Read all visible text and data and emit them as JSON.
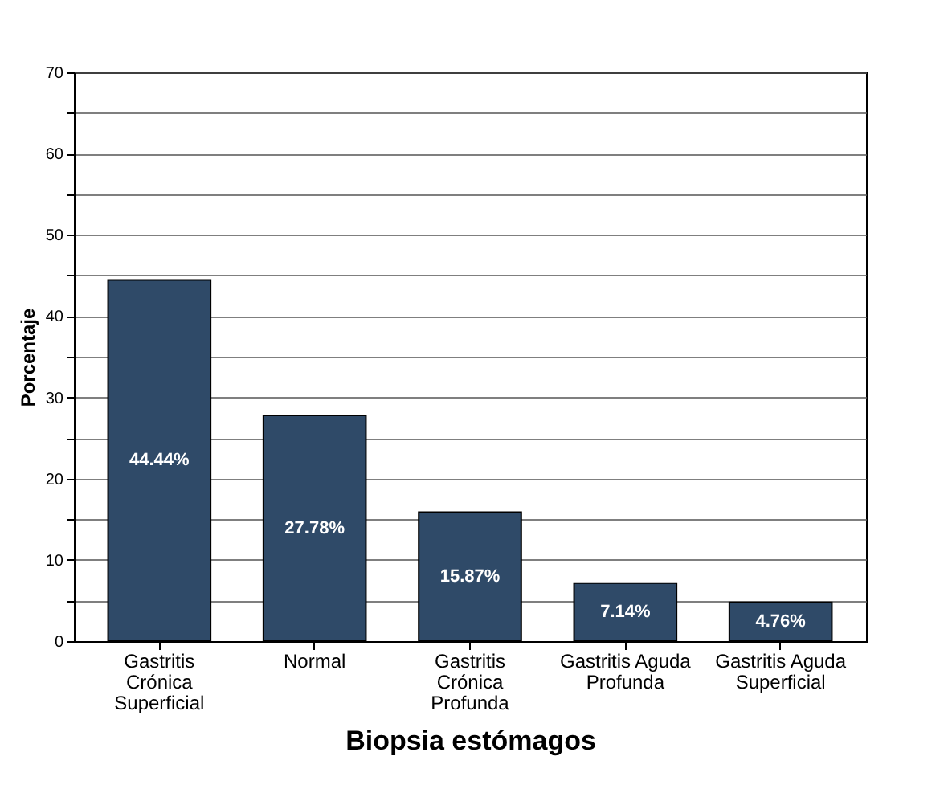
{
  "chart_data": {
    "type": "bar",
    "xlabel": "Biopsia estómagos",
    "ylabel": "Porcentaje",
    "categories": [
      "Gastritis Crónica Superficial",
      "Normal",
      "Gastritis Crónica Profunda",
      "Gastritis Aguda Profunda",
      "Gastritis Aguda Superficial"
    ],
    "values": [
      44.44,
      27.78,
      15.87,
      7.14,
      4.76
    ],
    "value_labels": [
      "44.44%",
      "27.78%",
      "15.87%",
      "7.14%",
      "4.76%"
    ],
    "color": "#2f4a68",
    "ylim": [
      0,
      70
    ],
    "yticks": [
      0,
      {
        "value": 5,
        "label": null
      },
      10,
      {
        "value": 15,
        "label": null
      },
      20,
      {
        "value": 25,
        "label": null
      },
      30,
      {
        "value": 35,
        "label": null
      },
      40,
      {
        "value": 45,
        "label": null
      },
      50,
      {
        "value": 55,
        "label": null
      },
      60,
      {
        "value": 65,
        "label": null
      },
      70
    ],
    "grid": "y"
  }
}
